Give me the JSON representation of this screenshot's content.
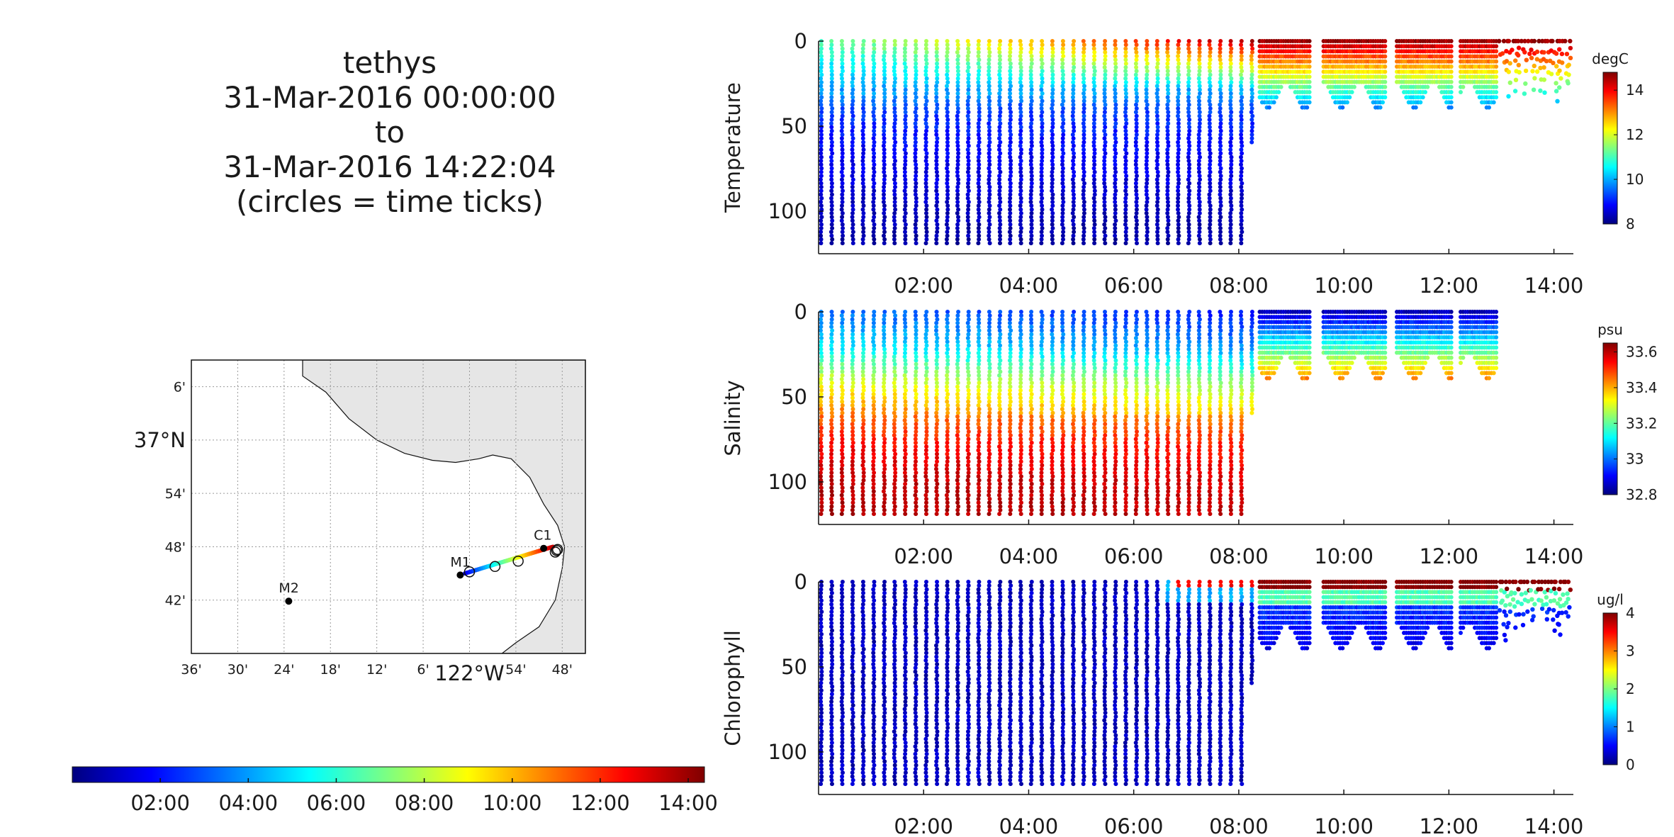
{
  "title_block": {
    "platform": "tethys",
    "start": "31-Mar-2016 00:00:00",
    "to": "to",
    "end": "31-Mar-2016 14:22:04",
    "note": "(circles = time ticks)"
  },
  "colors": {
    "land": "#e6e6e6",
    "grid": "#9a9a9a",
    "axis": "#222222",
    "jet_stops": [
      "#00007f",
      "#0000ff",
      "#007fff",
      "#00ffff",
      "#7fff7f",
      "#ffff00",
      "#ff7f00",
      "#ff0000",
      "#7f0000"
    ]
  },
  "chart_data": [
    {
      "type": "map",
      "lat_ticks": [
        "6'",
        "37°N",
        "54'",
        "48'",
        "42'"
      ],
      "lat_values": [
        37.1,
        37.0,
        36.9,
        36.8,
        36.7
      ],
      "lon_ticks": [
        "36'",
        "30'",
        "24'",
        "18'",
        "12'",
        "6'",
        "122°W",
        "54'",
        "48'"
      ],
      "lon_values": [
        -122.6,
        -122.5,
        -122.4,
        -122.3,
        -122.2,
        -122.1,
        -122.0,
        -121.9,
        -121.8
      ],
      "lat_range": [
        36.6,
        37.15
      ],
      "lon_range": [
        -122.6,
        -121.75
      ],
      "stations": [
        {
          "name": "M2",
          "lon": -122.39,
          "lat": 36.698
        },
        {
          "name": "M1",
          "lon": -122.02,
          "lat": 36.747
        },
        {
          "name": "C1",
          "lon": -121.84,
          "lat": 36.797
        }
      ],
      "track": {
        "start": [
          -122.01,
          36.75
        ],
        "end": [
          -121.82,
          36.8
        ]
      },
      "time_tick_circles": [
        [
          -122.0,
          36.753
        ],
        [
          -121.945,
          36.763
        ],
        [
          -121.895,
          36.773
        ],
        [
          -121.815,
          36.79
        ],
        [
          -121.81,
          36.795
        ],
        [
          -121.812,
          36.793
        ]
      ],
      "grid": true
    },
    {
      "type": "colorbar",
      "orientation": "horizontal",
      "tick_labels": [
        "02:00",
        "04:00",
        "06:00",
        "08:00",
        "10:00",
        "12:00",
        "14:00"
      ],
      "tick_values_hours": [
        2,
        4,
        6,
        8,
        10,
        12,
        14
      ],
      "range_hours": [
        0,
        14.37
      ]
    },
    {
      "type": "scatter",
      "ylabel": "Temperature",
      "units": "degC",
      "x_tick_labels": [
        "02:00",
        "04:00",
        "06:00",
        "08:00",
        "10:00",
        "12:00",
        "14:00"
      ],
      "x_tick_hours": [
        2,
        4,
        6,
        8,
        10,
        12,
        14
      ],
      "xlim_hours": [
        0,
        14.37
      ],
      "y_ticks": [
        0,
        50,
        100
      ],
      "ylim": [
        0,
        125
      ],
      "y_reversed": true,
      "colorbar_ticks": [
        "8",
        "10",
        "12",
        "14"
      ],
      "colorbar_values": [
        8,
        10,
        12,
        14
      ],
      "clim": [
        8,
        14.8
      ],
      "profiles_phase1": {
        "start_hour": 0.05,
        "end_hour": 8.25,
        "count": 42,
        "max_depth": 120,
        "last_max_depth": 60
      },
      "profiles_phase2": {
        "start_hour": 8.4,
        "end_hour": 12.9,
        "max_depth": 40,
        "gap_hours": [
          [
            9.35,
            9.6
          ],
          [
            10.8,
            11.0
          ],
          [
            12.05,
            12.2
          ]
        ]
      },
      "profiles_phase3": {
        "start_hour": 12.95,
        "end_hour": 14.3,
        "max_depth": 30
      },
      "profile_model": [
        [
          0,
          14.5
        ],
        [
          5,
          13.5
        ],
        [
          10,
          12.0
        ],
        [
          20,
          11.0
        ],
        [
          30,
          10.0
        ],
        [
          40,
          9.3
        ],
        [
          60,
          8.9
        ],
        [
          100,
          8.4
        ],
        [
          125,
          8.2
        ]
      ],
      "profile_trend": "surface warms from about 11 at 00:00 to about 14.5 after 08:00"
    },
    {
      "type": "scatter",
      "ylabel": "Salinity",
      "units": "psu",
      "x_tick_labels": [
        "02:00",
        "04:00",
        "06:00",
        "08:00",
        "10:00",
        "12:00",
        "14:00"
      ],
      "x_tick_hours": [
        2,
        4,
        6,
        8,
        10,
        12,
        14
      ],
      "xlim_hours": [
        0,
        14.37
      ],
      "y_ticks": [
        0,
        50,
        100
      ],
      "ylim": [
        0,
        125
      ],
      "y_reversed": true,
      "colorbar_ticks": [
        "32.8",
        "33",
        "33.2",
        "33.4",
        "33.6"
      ],
      "colorbar_values": [
        32.8,
        33.0,
        33.2,
        33.4,
        33.6
      ],
      "clim": [
        32.8,
        33.65
      ],
      "profiles_phase1": {
        "start_hour": 0.05,
        "end_hour": 8.25,
        "count": 42,
        "max_depth": 120,
        "last_max_depth": 60
      },
      "profiles_phase2": {
        "start_hour": 8.4,
        "end_hour": 12.9,
        "max_depth": 40,
        "gap_hours": [
          [
            9.35,
            9.6
          ],
          [
            10.8,
            11.0
          ],
          [
            12.05,
            12.2
          ]
        ]
      },
      "profile_model": [
        [
          0,
          33.0
        ],
        [
          20,
          33.1
        ],
        [
          40,
          33.3
        ],
        [
          60,
          33.45
        ],
        [
          80,
          33.55
        ],
        [
          100,
          33.6
        ],
        [
          125,
          33.62
        ]
      ],
      "profile_trend": "fresher surface after 08:00 (about 32.8 at top, 33.4 at 40 m)"
    },
    {
      "type": "scatter",
      "ylabel": "Chlorophyll",
      "units": "ug/l",
      "x_tick_labels": [
        "02:00",
        "04:00",
        "06:00",
        "08:00",
        "10:00",
        "12:00",
        "14:00"
      ],
      "x_tick_hours": [
        2,
        4,
        6,
        8,
        10,
        12,
        14
      ],
      "xlim_hours": [
        0,
        14.37
      ],
      "y_ticks": [
        0,
        50,
        100
      ],
      "ylim": [
        0,
        125
      ],
      "y_reversed": true,
      "colorbar_ticks": [
        "0",
        "1",
        "2",
        "3",
        "4"
      ],
      "colorbar_values": [
        0,
        1,
        2,
        3,
        4
      ],
      "clim": [
        0,
        4
      ],
      "profiles_phase1": {
        "start_hour": 0.05,
        "end_hour": 8.25,
        "count": 42,
        "max_depth": 120,
        "last_max_depth": 60
      },
      "profiles_phase2": {
        "start_hour": 8.4,
        "end_hour": 12.9,
        "max_depth": 40,
        "gap_hours": [
          [
            9.35,
            9.6
          ],
          [
            10.8,
            11.0
          ],
          [
            12.05,
            12.2
          ]
        ]
      },
      "profiles_phase3": {
        "start_hour": 12.95,
        "end_hour": 14.3,
        "max_depth": 30
      },
      "profile_model": [
        [
          0,
          0.3
        ],
        [
          10,
          0.3
        ],
        [
          40,
          0.2
        ],
        [
          125,
          0.1
        ]
      ],
      "profile_trend": "high surface values (about 4) after 07:00, moderate (about 1) down to 40 m"
    }
  ]
}
